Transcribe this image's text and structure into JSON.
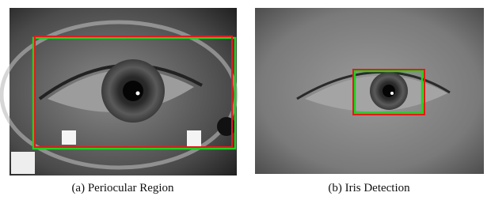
{
  "panels": [
    {
      "caption": "(a) Periocular Region"
    },
    {
      "caption": "(b) Iris Detection"
    }
  ]
}
